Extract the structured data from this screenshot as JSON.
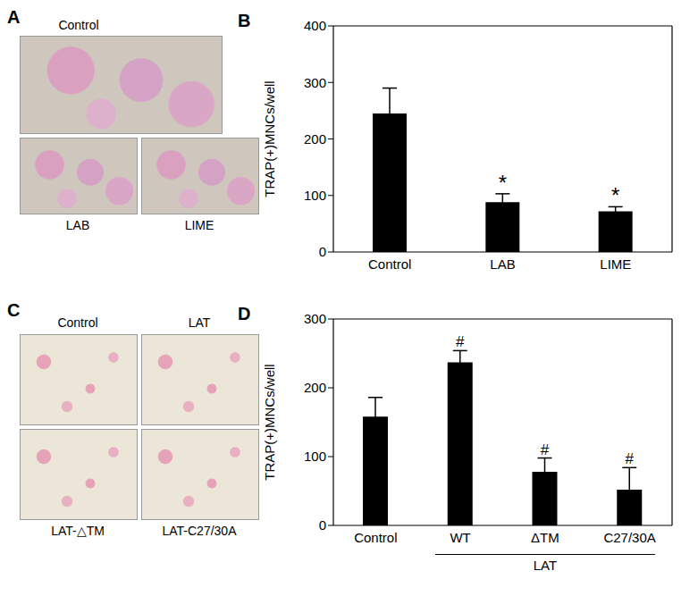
{
  "image_panels": [
    {
      "panel": "A",
      "captions": [
        "Control",
        "LAB",
        "LIME"
      ]
    },
    {
      "panel": "C",
      "captions": [
        "Control",
        "LAT",
        "LAT-△TM",
        "LAT-C27/30A"
      ]
    }
  ],
  "chart_data": [
    {
      "panel": "B",
      "type": "bar",
      "categories": [
        "Control",
        "LAB",
        "LIME"
      ],
      "values": [
        245,
        88,
        72
      ],
      "errors": [
        45,
        15,
        8
      ],
      "significance": [
        null,
        "*",
        "*"
      ],
      "y_label": "TRAP(+)MNCs/well",
      "color": "#000000",
      "ylim": [
        0,
        400
      ],
      "yticks": [
        0,
        100,
        200,
        300,
        400
      ]
    },
    {
      "panel": "D",
      "type": "bar",
      "categories": [
        "Control",
        "WT",
        "ΔTM",
        "C27/30A"
      ],
      "values": [
        158,
        237,
        78,
        52
      ],
      "errors": [
        28,
        17,
        20,
        32
      ],
      "significance": [
        null,
        "#",
        "#",
        "#"
      ],
      "group_label": {
        "text": "LAT",
        "categories": [
          "WT",
          "ΔTM",
          "C27/30A"
        ]
      },
      "y_label": "TRAP(+)MNCs/well",
      "color": "#000000",
      "ylim": [
        0,
        300
      ],
      "yticks": [
        0,
        100,
        200,
        300
      ]
    }
  ]
}
